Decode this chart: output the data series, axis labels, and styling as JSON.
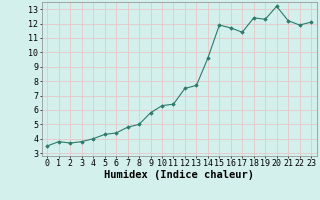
{
  "x": [
    0,
    1,
    2,
    3,
    4,
    5,
    6,
    7,
    8,
    9,
    10,
    11,
    12,
    13,
    14,
    15,
    16,
    17,
    18,
    19,
    20,
    21,
    22,
    23
  ],
  "y": [
    3.5,
    3.8,
    3.7,
    3.8,
    4.0,
    4.3,
    4.4,
    4.8,
    5.0,
    5.8,
    6.3,
    6.4,
    7.5,
    7.7,
    9.6,
    11.9,
    11.7,
    11.4,
    12.4,
    12.3,
    13.2,
    12.2,
    11.9,
    12.1
  ],
  "xlabel": "Humidex (Indice chaleur)",
  "xlim": [
    -0.5,
    23.5
  ],
  "ylim": [
    2.8,
    13.5
  ],
  "yticks": [
    3,
    4,
    5,
    6,
    7,
    8,
    9,
    10,
    11,
    12,
    13
  ],
  "xticks": [
    0,
    1,
    2,
    3,
    4,
    5,
    6,
    7,
    8,
    9,
    10,
    11,
    12,
    13,
    14,
    15,
    16,
    17,
    18,
    19,
    20,
    21,
    22,
    23
  ],
  "line_color": "#2d7a6b",
  "marker_color": "#2d7a6b",
  "bg_color": "#d4f0ec",
  "grid_color": "#e8c8c8",
  "tick_label_fontsize": 6.0,
  "xlabel_fontsize": 7.5
}
